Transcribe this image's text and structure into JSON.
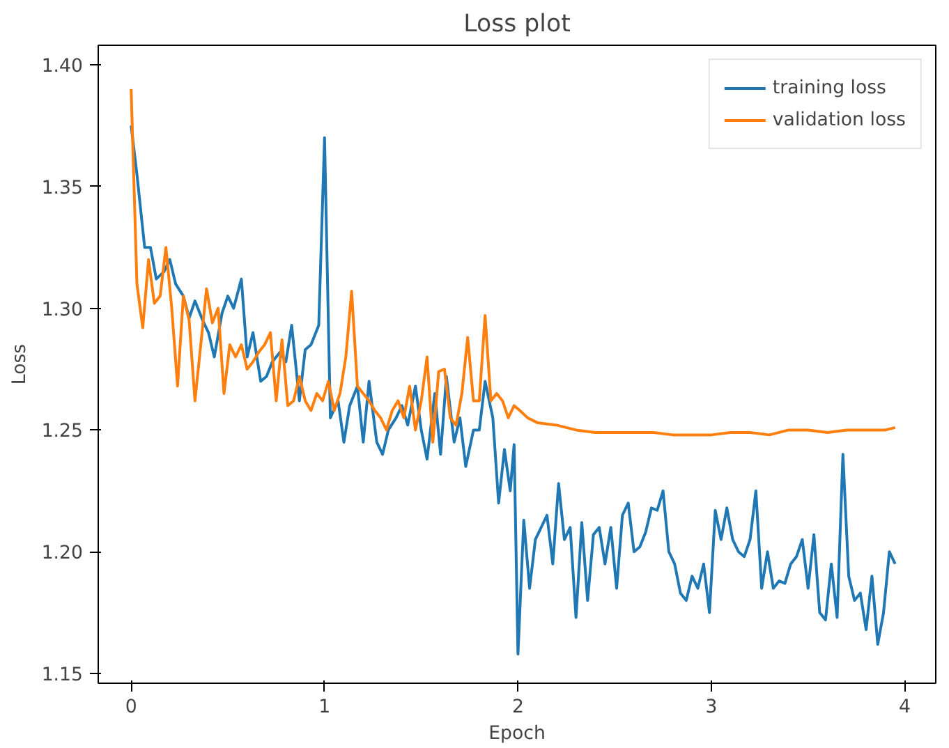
{
  "chart_data": {
    "type": "line",
    "title": "Loss plot",
    "xlabel": "Epoch",
    "ylabel": "Loss",
    "xlim": [
      -0.17,
      4.16
    ],
    "ylim": [
      1.146,
      1.408
    ],
    "xticks": [
      0,
      1,
      2,
      3,
      4
    ],
    "yticks": [
      {
        "value": 1.15,
        "label": "1.15"
      },
      {
        "value": 1.2,
        "label": "1.20"
      },
      {
        "value": 1.25,
        "label": "1.25"
      },
      {
        "value": 1.3,
        "label": "1.30"
      },
      {
        "value": 1.35,
        "label": "1.35"
      },
      {
        "value": 1.4,
        "label": "1.40"
      }
    ],
    "grid": false,
    "legend": "top right",
    "line_style": "solid",
    "marker": "none",
    "series": [
      {
        "name": "training loss",
        "color": "#1f77b4",
        "x": [
          0,
          0.03,
          0.07,
          0.1,
          0.13,
          0.17,
          0.2,
          0.23,
          0.27,
          0.3,
          0.33,
          0.37,
          0.4,
          0.43,
          0.47,
          0.5,
          0.53,
          0.57,
          0.6,
          0.63,
          0.67,
          0.7,
          0.73,
          0.77,
          0.8,
          0.83,
          0.87,
          0.9,
          0.93,
          0.97,
          1.0,
          1.03,
          1.07,
          1.1,
          1.13,
          1.17,
          1.2,
          1.23,
          1.27,
          1.3,
          1.33,
          1.37,
          1.4,
          1.43,
          1.47,
          1.5,
          1.53,
          1.57,
          1.6,
          1.63,
          1.67,
          1.7,
          1.73,
          1.77,
          1.8,
          1.83,
          1.87,
          1.9,
          1.93,
          1.96,
          1.98,
          2.0,
          2.03,
          2.06,
          2.09,
          2.12,
          2.15,
          2.18,
          2.21,
          2.24,
          2.27,
          2.3,
          2.33,
          2.36,
          2.39,
          2.42,
          2.45,
          2.48,
          2.51,
          2.54,
          2.57,
          2.6,
          2.63,
          2.66,
          2.69,
          2.72,
          2.75,
          2.78,
          2.81,
          2.84,
          2.87,
          2.9,
          2.93,
          2.96,
          2.99,
          3.02,
          3.05,
          3.08,
          3.11,
          3.14,
          3.17,
          3.2,
          3.23,
          3.26,
          3.29,
          3.32,
          3.35,
          3.38,
          3.41,
          3.44,
          3.47,
          3.5,
          3.53,
          3.56,
          3.59,
          3.62,
          3.65,
          3.68,
          3.71,
          3.74,
          3.77,
          3.8,
          3.83,
          3.86,
          3.89,
          3.92,
          3.95
        ],
        "values": [
          1.375,
          1.355,
          1.325,
          1.325,
          1.312,
          1.315,
          1.32,
          1.31,
          1.305,
          1.296,
          1.303,
          1.295,
          1.29,
          1.28,
          1.298,
          1.305,
          1.3,
          1.312,
          1.28,
          1.29,
          1.27,
          1.272,
          1.278,
          1.282,
          1.278,
          1.293,
          1.262,
          1.283,
          1.285,
          1.293,
          1.37,
          1.255,
          1.262,
          1.245,
          1.26,
          1.268,
          1.245,
          1.27,
          1.245,
          1.24,
          1.25,
          1.255,
          1.26,
          1.252,
          1.268,
          1.25,
          1.238,
          1.265,
          1.24,
          1.272,
          1.245,
          1.255,
          1.235,
          1.25,
          1.25,
          1.27,
          1.255,
          1.22,
          1.242,
          1.225,
          1.244,
          1.158,
          1.213,
          1.185,
          1.205,
          1.21,
          1.215,
          1.195,
          1.228,
          1.205,
          1.21,
          1.173,
          1.212,
          1.18,
          1.207,
          1.21,
          1.195,
          1.21,
          1.185,
          1.215,
          1.22,
          1.2,
          1.202,
          1.208,
          1.218,
          1.217,
          1.225,
          1.2,
          1.195,
          1.183,
          1.18,
          1.19,
          1.185,
          1.195,
          1.175,
          1.217,
          1.205,
          1.218,
          1.205,
          1.2,
          1.198,
          1.205,
          1.225,
          1.185,
          1.2,
          1.185,
          1.188,
          1.187,
          1.195,
          1.198,
          1.205,
          1.185,
          1.207,
          1.175,
          1.172,
          1.195,
          1.173,
          1.24,
          1.19,
          1.18,
          1.183,
          1.168,
          1.19,
          1.162,
          1.175,
          1.2,
          1.195
        ]
      },
      {
        "name": "validation loss",
        "color": "#ff7f0e",
        "x": [
          0,
          0.03,
          0.06,
          0.09,
          0.12,
          0.15,
          0.18,
          0.21,
          0.24,
          0.27,
          0.3,
          0.33,
          0.36,
          0.39,
          0.42,
          0.45,
          0.48,
          0.51,
          0.54,
          0.57,
          0.6,
          0.63,
          0.66,
          0.69,
          0.72,
          0.75,
          0.78,
          0.81,
          0.84,
          0.87,
          0.9,
          0.93,
          0.96,
          0.99,
          1.02,
          1.05,
          1.08,
          1.11,
          1.14,
          1.17,
          1.2,
          1.23,
          1.26,
          1.29,
          1.32,
          1.35,
          1.38,
          1.41,
          1.44,
          1.47,
          1.5,
          1.53,
          1.56,
          1.59,
          1.62,
          1.65,
          1.68,
          1.71,
          1.74,
          1.77,
          1.8,
          1.83,
          1.86,
          1.89,
          1.92,
          1.95,
          1.98,
          2.01,
          2.05,
          2.1,
          2.2,
          2.3,
          2.4,
          2.5,
          2.6,
          2.7,
          2.8,
          2.9,
          3.0,
          3.1,
          3.2,
          3.3,
          3.4,
          3.5,
          3.6,
          3.7,
          3.8,
          3.9,
          3.95
        ],
        "values": [
          1.39,
          1.31,
          1.292,
          1.32,
          1.302,
          1.305,
          1.325,
          1.3,
          1.268,
          1.305,
          1.295,
          1.262,
          1.285,
          1.308,
          1.294,
          1.3,
          1.265,
          1.285,
          1.28,
          1.285,
          1.275,
          1.278,
          1.282,
          1.285,
          1.29,
          1.262,
          1.287,
          1.26,
          1.262,
          1.272,
          1.262,
          1.258,
          1.265,
          1.262,
          1.27,
          1.258,
          1.265,
          1.28,
          1.307,
          1.268,
          1.265,
          1.262,
          1.258,
          1.255,
          1.25,
          1.258,
          1.262,
          1.255,
          1.268,
          1.25,
          1.262,
          1.28,
          1.245,
          1.274,
          1.275,
          1.255,
          1.252,
          1.265,
          1.288,
          1.262,
          1.262,
          1.297,
          1.262,
          1.265,
          1.262,
          1.255,
          1.26,
          1.258,
          1.255,
          1.253,
          1.252,
          1.25,
          1.249,
          1.249,
          1.249,
          1.249,
          1.248,
          1.248,
          1.248,
          1.249,
          1.249,
          1.248,
          1.25,
          1.25,
          1.249,
          1.25,
          1.25,
          1.25,
          1.251
        ]
      }
    ]
  }
}
